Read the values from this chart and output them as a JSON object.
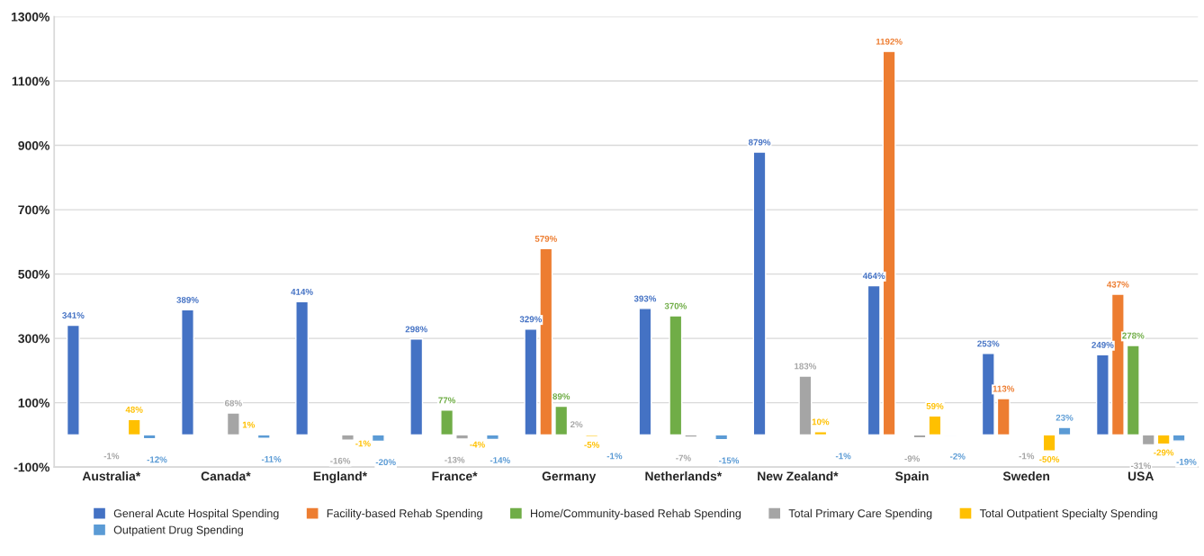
{
  "chart_data": {
    "type": "bar",
    "categories": [
      "Australia*",
      "Canada*",
      "England*",
      "France*",
      "Germany",
      "Netherlands*",
      "New Zealand*",
      "Spain",
      "Sweden",
      "USA"
    ],
    "series": [
      {
        "name": "General Acute Hospital Spending",
        "color": "#4472c4",
        "values": [
          341,
          389,
          414,
          298,
          329,
          393,
          879,
          464,
          253,
          249
        ],
        "value_labels": [
          "341%",
          "389%",
          "414%",
          "298%",
          "329%",
          "393%",
          "879%",
          "464%",
          "253%",
          "249%"
        ]
      },
      {
        "name": "Facility-based Rehab Spending",
        "color": "#ed7d31",
        "values": [
          null,
          null,
          null,
          null,
          579,
          null,
          null,
          1192,
          113,
          437
        ],
        "value_labels": [
          null,
          null,
          null,
          null,
          "579%",
          null,
          null,
          "1192%",
          "113%",
          "437%"
        ]
      },
      {
        "name": "Home/Community-based Rehab Spending",
        "color": "#70ad47",
        "values": [
          null,
          null,
          null,
          77,
          89,
          370,
          null,
          null,
          null,
          278
        ],
        "value_labels": [
          null,
          null,
          null,
          "77%",
          "89%",
          "370%",
          null,
          null,
          null,
          "278%"
        ]
      },
      {
        "name": "Total Primary Care Spending",
        "color": "#a5a5a5",
        "values": [
          -1,
          68,
          -16,
          -13,
          2,
          -7,
          183,
          -9,
          -1,
          -31
        ],
        "value_labels": [
          "-1%",
          "68%",
          "-16%",
          "-13%",
          "2%",
          "-7%",
          "183%",
          "-9%",
          "-1%",
          "-31%"
        ]
      },
      {
        "name": "Total Outpatient Specialty Spending",
        "color": "#ffc000",
        "values": [
          48,
          1,
          -1,
          -4,
          -5,
          null,
          10,
          59,
          -50,
          -29
        ],
        "value_labels": [
          "48%",
          "1%",
          "-1%",
          "-4%",
          "-5%",
          null,
          "10%",
          "59%",
          "-50%",
          "-29%"
        ]
      },
      {
        "name": "Outpatient Drug Spending",
        "color": "#5b9bd5",
        "values": [
          -12,
          -11,
          -20,
          -14,
          -1,
          -15,
          -1,
          -2,
          23,
          -19
        ],
        "value_labels": [
          "-12%",
          "-11%",
          "-20%",
          "-14%",
          "-1%",
          "-15%",
          "-1%",
          "-2%",
          "23%",
          "-19%"
        ]
      }
    ],
    "ylim": [
      -100,
      1300
    ],
    "yticks": [
      {
        "value": -100,
        "label": "-100%"
      },
      {
        "value": 100,
        "label": "100%"
      },
      {
        "value": 300,
        "label": "300%"
      },
      {
        "value": 500,
        "label": "500%"
      },
      {
        "value": 700,
        "label": "700%"
      },
      {
        "value": 900,
        "label": "900%"
      },
      {
        "value": 1100,
        "label": "1100%"
      },
      {
        "value": 1300,
        "label": "1300%"
      }
    ],
    "grid": "y",
    "legend": "bottom"
  }
}
